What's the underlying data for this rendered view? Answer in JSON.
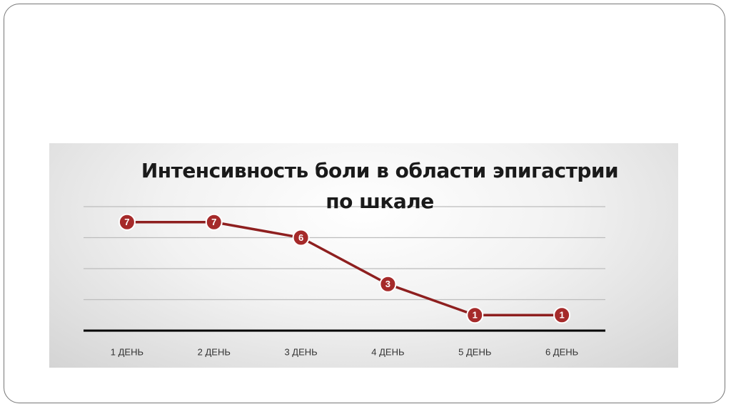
{
  "chart_data": {
    "type": "line",
    "title": "Интенсивность боли в области эпигастрии по шкале",
    "categories": [
      "1 ДЕНЬ",
      "2 ДЕНЬ",
      "3 ДЕНЬ",
      "4 ДЕНЬ",
      "5 ДЕНЬ",
      "6 ДЕНЬ"
    ],
    "values": [
      7,
      7,
      6,
      3,
      1,
      1
    ],
    "color": "#8e1f1f",
    "ylim": [
      0,
      8
    ],
    "yticks": [
      0,
      2,
      4,
      6,
      8
    ],
    "grid": true
  }
}
